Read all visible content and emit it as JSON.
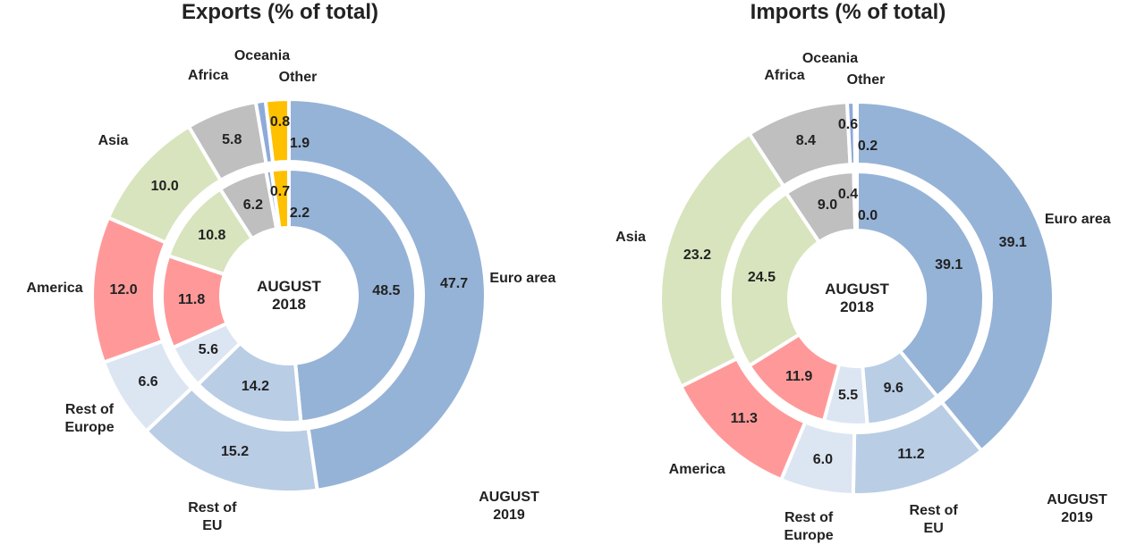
{
  "chart_data": [
    {
      "type": "donut",
      "title": "Exports (% of total)",
      "categories": [
        "Euro area",
        "Rest of EU",
        "Rest of Europe",
        "America",
        "Asia",
        "Africa",
        "Oceania",
        "Other"
      ],
      "colors": [
        "#95b3d7",
        "#b9cde5",
        "#dce6f2",
        "#ff9999",
        "#d7e4bd",
        "#bfbfbf",
        "#8eaadb",
        "#ffc000"
      ],
      "series": [
        {
          "name": "AUGUST 2018",
          "values": [
            48.5,
            14.2,
            5.6,
            11.8,
            10.8,
            6.2,
            0.7,
            2.2
          ],
          "value_labels": [
            "48.5",
            "14.2",
            "5.6",
            "11.8",
            "10.8",
            "6.2",
            "0.7",
            "2.2"
          ]
        },
        {
          "name": "AUGUST 2019",
          "values": [
            47.7,
            15.2,
            6.6,
            12.0,
            10.0,
            5.8,
            0.8,
            1.9
          ],
          "value_labels": [
            "47.7",
            "15.2",
            "6.6",
            "12.0",
            "10.0",
            "5.8",
            "0.8",
            "1.9"
          ]
        }
      ]
    },
    {
      "type": "donut",
      "title": "Imports (% of total)",
      "categories": [
        "Euro area",
        "Rest of EU",
        "Rest of Europe",
        "America",
        "Asia",
        "Africa",
        "Oceania",
        "Other"
      ],
      "colors": [
        "#95b3d7",
        "#b9cde5",
        "#dce6f2",
        "#ff9999",
        "#d7e4bd",
        "#bfbfbf",
        "#8eaadb",
        "#ffc000"
      ],
      "series": [
        {
          "name": "AUGUST 2018",
          "values": [
            39.1,
            9.6,
            5.5,
            11.9,
            24.5,
            9.0,
            0.4,
            0.0
          ],
          "value_labels": [
            "39.1",
            "9.6",
            "5.5",
            "11.9",
            "24.5",
            "9.0",
            "0.4",
            "0.0"
          ]
        },
        {
          "name": "AUGUST 2019",
          "values": [
            39.1,
            11.2,
            6.0,
            11.3,
            23.2,
            8.4,
            0.6,
            0.2
          ],
          "value_labels": [
            "39.1",
            "11.2",
            "6.0",
            "11.3",
            "23.2",
            "8.4",
            "0.6",
            "0.2"
          ]
        }
      ]
    }
  ]
}
